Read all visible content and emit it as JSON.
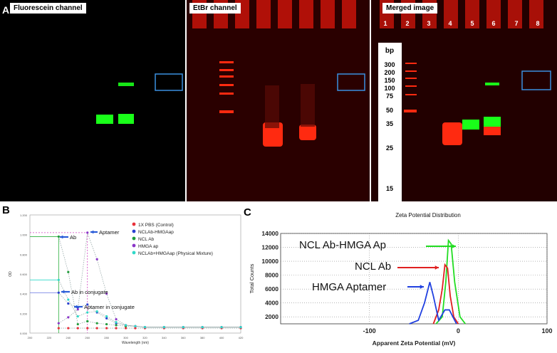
{
  "panel_a": {
    "letter": "A",
    "titles": {
      "fluorescein": "Fluorescein channel",
      "etbr": "EtBr channel",
      "merged": "Merged image"
    },
    "lane_numbers": [
      "1",
      "2",
      "3",
      "4",
      "5",
      "6",
      "7",
      "8"
    ],
    "bp_label": "bp",
    "bp_values": [
      "300",
      "200",
      "150",
      "100",
      "75",
      "50",
      "35",
      "25",
      "15"
    ],
    "colors": {
      "green": "#19ff19",
      "red": "#ff2a10",
      "box": "#3b8fe0"
    }
  },
  "panel_b": {
    "letter": "B",
    "annotations": {
      "aptamer": "Aptamer",
      "ab": "Ab",
      "ab_conj": "Ab in conjugate",
      "apt_conj": "Aptamer in conjugate"
    },
    "chart_data": {
      "type": "line",
      "xlabel": "Wavelength (nm)",
      "ylabel": "OD",
      "xlim": [
        200,
        420
      ],
      "ylim": [
        0,
        1.2
      ],
      "xticks": [
        "200",
        "220",
        "240",
        "260",
        "280",
        "300",
        "320",
        "340",
        "360",
        "380",
        "400",
        "420"
      ],
      "yticks": [
        "0.000",
        "0.200",
        "0.400",
        "0.600",
        "0.800",
        "1.000",
        "1.200"
      ],
      "x": [
        230,
        240,
        250,
        260,
        270,
        280,
        290,
        300,
        310,
        320,
        340,
        360,
        380,
        400,
        420
      ],
      "series": [
        {
          "name": "1X PBS (Control)",
          "color": "#e8303a",
          "values": [
            0.05,
            0.05,
            0.05,
            0.05,
            0.05,
            0.05,
            0.05,
            0.05,
            0.05,
            0.05,
            0.05,
            0.05,
            0.05,
            0.05,
            0.05
          ]
        },
        {
          "name": "NCLAb-HMGAap",
          "color": "#2a3fd0",
          "values": [
            0.41,
            0.3,
            0.26,
            0.29,
            0.21,
            0.15,
            0.1,
            0.08,
            0.07,
            0.06,
            0.06,
            0.06,
            0.06,
            0.06,
            0.06
          ]
        },
        {
          "name": "NCL Ab",
          "color": "#1f9b3a",
          "values": [
            0.98,
            0.62,
            0.09,
            0.12,
            0.1,
            0.09,
            0.08,
            0.07,
            0.07,
            0.06,
            0.06,
            0.06,
            0.06,
            0.06,
            0.06
          ]
        },
        {
          "name": "HMGA ap",
          "color": "#8a35c8",
          "values": [
            0.1,
            0.16,
            0.24,
            1.02,
            0.75,
            0.4,
            0.14,
            0.08,
            0.07,
            0.06,
            0.06,
            0.06,
            0.06,
            0.06,
            0.06
          ]
        },
        {
          "name": "NCLAb+HMGAap (Physical Mixture)",
          "color": "#2fd8c8",
          "values": [
            0.54,
            0.34,
            0.17,
            0.21,
            0.22,
            0.17,
            0.11,
            0.08,
            0.07,
            0.06,
            0.06,
            0.06,
            0.06,
            0.06,
            0.06
          ]
        }
      ]
    }
  },
  "panel_c": {
    "letter": "C",
    "annotations": {
      "ncl_hmga": "NCL Ab-HMGA  Ap",
      "ncl": "NCL Ab",
      "hmga": "HMGA  Aptamer"
    },
    "chart_data": {
      "type": "line",
      "title": "Zeta Potential Distribution",
      "xlabel": "Apparent Zeta Potential (mV)",
      "ylabel": "Total Counts",
      "xlim": [
        -200,
        100
      ],
      "ylim": [
        1000,
        14000
      ],
      "xticks": [
        "-100",
        "0",
        "100"
      ],
      "yticks": [
        "14000",
        "12000",
        "10000",
        "8000",
        "6000",
        "4000",
        "2000"
      ],
      "series": [
        {
          "name": "NCL Ab-HMGA Ap",
          "color": "#22dd22",
          "x": [
            -25,
            -18,
            -14,
            -11,
            -8,
            -4,
            2,
            8
          ],
          "values": [
            1000,
            2000,
            7000,
            13000,
            12500,
            7000,
            2000,
            1000
          ]
        },
        {
          "name": "NCL Ab",
          "color": "#e02020",
          "x": [
            -28,
            -22,
            -18,
            -15,
            -12,
            -9,
            -5,
            0
          ],
          "values": [
            1000,
            3000,
            6000,
            9500,
            9000,
            5000,
            2000,
            1000
          ]
        },
        {
          "name": "HMGA Aptamer",
          "color": "#2040e0",
          "x": [
            -55,
            -45,
            -38,
            -32,
            -28,
            -22,
            -15,
            -10,
            -6,
            -2
          ],
          "values": [
            1000,
            1500,
            4000,
            7000,
            5000,
            1500,
            3000,
            3000,
            2000,
            1000
          ]
        }
      ]
    }
  }
}
